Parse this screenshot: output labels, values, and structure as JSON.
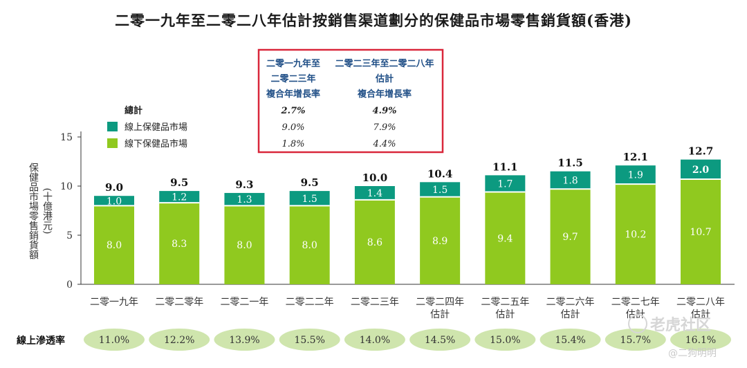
{
  "title": "二零一九年至二零二八年估計按銷售渠道劃分的保健品市場零售銷貨額(香港)",
  "cagr_table": {
    "col1_lines": [
      "二零一九年至",
      "二零二三年",
      "複合年增長率"
    ],
    "col2_lines": [
      "二零二三年至二零二八年",
      "估計",
      "複合年增長率"
    ],
    "rows": [
      {
        "label": "總計",
        "v1": "2.7%",
        "v2": "4.9%"
      },
      {
        "label": "線上保健品市場",
        "v1": "9.0%",
        "v2": "7.9%"
      },
      {
        "label": "線下保健品市場",
        "v1": "1.8%",
        "v2": "4.4%"
      }
    ],
    "highlight_color": "#d9263a"
  },
  "penetration": {
    "label": "線上滲透率",
    "values": [
      "11.0%",
      "12.2%",
      "13.9%",
      "15.5%",
      "14.0%",
      "14.5%",
      "15.0%",
      "15.4%",
      "15.7%",
      "16.1%"
    ]
  },
  "watermark": {
    "brand": "老虎社区",
    "user": "@二狗明明"
  },
  "colors": {
    "online": "#0c9a80",
    "offline": "#90c91f",
    "oval": "#cfe5ad"
  },
  "chart_data": {
    "type": "bar",
    "stacked": true,
    "ylabel": "保健品市場零售銷貨額",
    "yunit": "(十億港元)",
    "ylim": [
      0,
      15
    ],
    "yticks": [
      0,
      5,
      10,
      15
    ],
    "categories": [
      [
        "二零一九年"
      ],
      [
        "二零二零年"
      ],
      [
        "二零二一年"
      ],
      [
        "二零二二年"
      ],
      [
        "二零二三年"
      ],
      [
        "二零二四年",
        "估計"
      ],
      [
        "二零二五年",
        "估計"
      ],
      [
        "二零二六年",
        "估計"
      ],
      [
        "二零二七年",
        "估計"
      ],
      [
        "二零二八年",
        "估計"
      ]
    ],
    "series": [
      {
        "name": "線下保健品市場",
        "color": "#90c91f",
        "values": [
          8.0,
          8.3,
          8.0,
          8.0,
          8.6,
          8.9,
          9.4,
          9.7,
          10.2,
          10.7
        ]
      },
      {
        "name": "線上保健品市場",
        "color": "#0c9a80",
        "values": [
          1.0,
          1.2,
          1.3,
          1.5,
          1.4,
          1.5,
          1.7,
          1.8,
          1.9,
          2.0
        ]
      }
    ],
    "totals": [
      9.0,
      9.5,
      9.3,
      9.5,
      10.0,
      10.4,
      11.1,
      11.5,
      12.1,
      12.7
    ],
    "legend_position": "top-left"
  }
}
